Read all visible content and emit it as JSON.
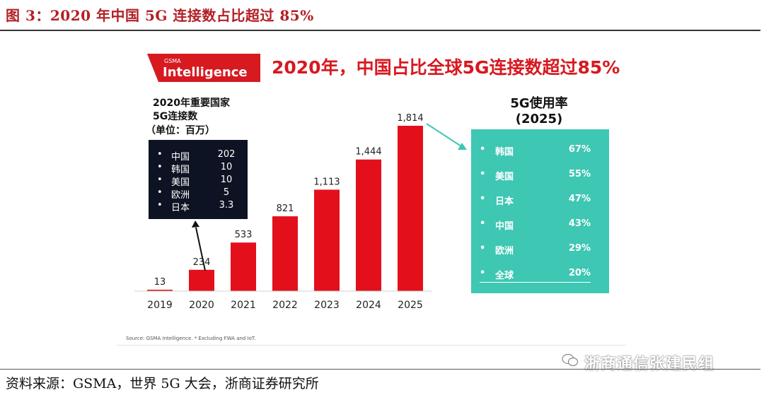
{
  "figure_title": "图 3：2020 年中国 5G 连接数占比超过 85%",
  "source_line": "资料来源：GSMA，世界 5G 大会，浙商证券研究所",
  "logo": {
    "small": "GSMA",
    "big": "Intelligence",
    "color": "#d71920"
  },
  "headline": "2020年，中国占比全球5G连接数超过85%",
  "left_caption": {
    "line1": "2020年重要国家",
    "line2": "5G连接数",
    "line3": "（单位：百万）"
  },
  "country_table": [
    {
      "bullet": "•",
      "name": "中国",
      "value": "202"
    },
    {
      "bullet": "•",
      "name": "韩国",
      "value": "10"
    },
    {
      "bullet": "•",
      "name": "美国",
      "value": "10"
    },
    {
      "bullet": "•",
      "name": "欧洲",
      "value": "5"
    },
    {
      "bullet": "•",
      "name": "日本",
      "value": "3.3"
    }
  ],
  "rate_title": {
    "line1": "5G使用率",
    "line2": "(2025)"
  },
  "rate_table": [
    {
      "bullet": "•",
      "name": "韩国",
      "pct": "67%"
    },
    {
      "bullet": "•",
      "name": "美国",
      "pct": "55%"
    },
    {
      "bullet": "•",
      "name": "日本",
      "pct": "47%"
    },
    {
      "bullet": "•",
      "name": "中国",
      "pct": "43%"
    },
    {
      "bullet": "•",
      "name": "欧洲",
      "pct": "29%"
    },
    {
      "bullet": "•",
      "name": "全球",
      "pct": "20%"
    }
  ],
  "small_source": "Source: GSMA Intelligence. * Excluding FWA and IoT.",
  "watermark": "浙商通信张建民组",
  "colors": {
    "title": "#b32025",
    "bar": "#e3101c",
    "dark_box": "#0d1322",
    "teal": "#3ec7b3",
    "arrow": "#3ec7b3"
  },
  "chart_data": {
    "type": "bar",
    "title": "",
    "categories": [
      "2019",
      "2020",
      "2021",
      "2022",
      "2023",
      "2024",
      "2025"
    ],
    "values": [
      13,
      234,
      533,
      821,
      1113,
      1444,
      1814
    ],
    "value_labels": [
      "13",
      "234",
      "533",
      "821",
      "1,113",
      "1,444",
      "1,814"
    ],
    "xlabel": "",
    "ylabel": "",
    "ylim": [
      0,
      1814
    ],
    "unit": "百万"
  }
}
